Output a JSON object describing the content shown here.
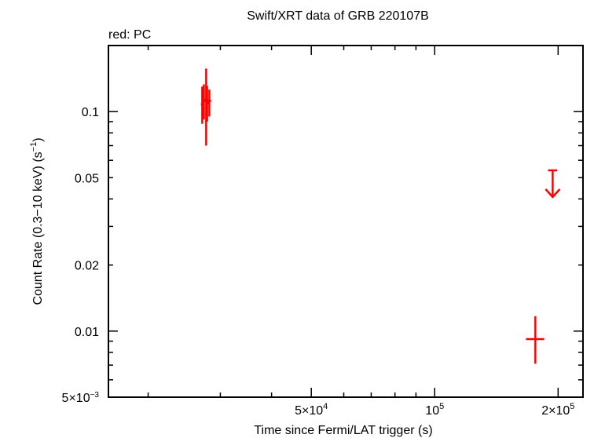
{
  "chart_data": {
    "type": "scatter",
    "title": "Swift/XRT data of GRB 220107B",
    "legend_text": "red: PC",
    "xlabel": "Time since Fermi/LAT trigger (s)",
    "ylabel_main": "Count Rate (0.3−10 keV) (s",
    "ylabel_sup": "−1",
    "ylabel_end": ")",
    "x_scale": "log",
    "y_scale": "log",
    "xlim": [
      16000,
      230000
    ],
    "ylim": [
      0.005,
      0.2
    ],
    "x_ticks": [
      {
        "value": 50000,
        "mantissa": "5×10",
        "exp": "4"
      },
      {
        "value": 100000,
        "mantissa": "10",
        "exp": "5"
      },
      {
        "value": 200000,
        "mantissa": "2×10",
        "exp": "5"
      }
    ],
    "y_ticks": [
      {
        "value": 0.1,
        "label": "0.1"
      },
      {
        "value": 0.05,
        "label": "0.05"
      },
      {
        "value": 0.02,
        "label": "0.02"
      },
      {
        "value": 0.01,
        "label": "0.01"
      },
      {
        "value": 0.005,
        "label": "5×10",
        "exp": "−3"
      }
    ],
    "series": [
      {
        "color": "#ff0000",
        "points": [
          {
            "x": 27100,
            "xlo": 26900,
            "xhi": 27300,
            "y": 0.108,
            "ylo": 0.088,
            "yhi": 0.13
          },
          {
            "x": 27350,
            "xlo": 27100,
            "xhi": 27600,
            "y": 0.113,
            "ylo": 0.092,
            "yhi": 0.133
          },
          {
            "x": 27700,
            "xlo": 27400,
            "xhi": 28000,
            "y": 0.112,
            "ylo": 0.07,
            "yhi": 0.157
          },
          {
            "x": 27850,
            "xlo": 27600,
            "xhi": 28100,
            "y": 0.11,
            "ylo": 0.09,
            "yhi": 0.131
          },
          {
            "x": 28200,
            "xlo": 27900,
            "xhi": 28500,
            "y": 0.112,
            "ylo": 0.095,
            "yhi": 0.126
          },
          {
            "x": 176000,
            "xlo": 167000,
            "xhi": 185000,
            "y": 0.0092,
            "ylo": 0.0071,
            "yhi": 0.0117
          }
        ],
        "upper_limits": [
          {
            "x": 194000,
            "xlo": 189000,
            "xhi": 199000,
            "y": 0.054
          }
        ]
      }
    ]
  }
}
